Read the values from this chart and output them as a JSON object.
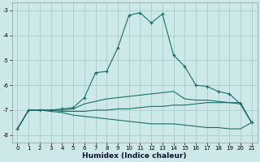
{
  "xlabel": "Humidex (Indice chaleur)",
  "bg_color": "#cce8e8",
  "grid_color": "#aacccc",
  "line_color": "#1a6e6a",
  "xlim": [
    -0.5,
    21.5
  ],
  "ylim": [
    -8.3,
    -2.7
  ],
  "xticks": [
    0,
    1,
    2,
    3,
    4,
    5,
    6,
    7,
    8,
    9,
    10,
    11,
    12,
    13,
    14,
    15,
    16,
    17,
    18,
    19,
    20,
    21
  ],
  "yticks": [
    -8,
    -7,
    -6,
    -5,
    -4,
    -3
  ],
  "main_x": [
    0,
    1,
    2,
    3,
    4,
    5,
    6,
    7,
    8,
    9,
    10,
    11,
    12,
    13,
    14,
    15,
    16,
    17,
    18,
    19,
    20,
    21
  ],
  "main_y": [
    -7.75,
    -7.0,
    -7.0,
    -7.0,
    -6.95,
    -6.9,
    -6.5,
    -5.5,
    -5.45,
    -4.5,
    -3.2,
    -3.1,
    -3.5,
    -3.15,
    -4.8,
    -5.25,
    -6.0,
    -6.05,
    -6.25,
    -6.35,
    -6.75,
    -7.5
  ],
  "line2_x": [
    0,
    1,
    2,
    3,
    4,
    5,
    6,
    7,
    8,
    9,
    10,
    11,
    12,
    13,
    14,
    15,
    16,
    17,
    18,
    19,
    20,
    21
  ],
  "line2_y": [
    -7.75,
    -7.0,
    -7.0,
    -7.0,
    -7.0,
    -6.95,
    -6.75,
    -6.65,
    -6.55,
    -6.5,
    -6.45,
    -6.4,
    -6.35,
    -6.3,
    -6.25,
    -6.55,
    -6.6,
    -6.6,
    -6.65,
    -6.7,
    -6.75,
    -7.5
  ],
  "line3_x": [
    0,
    1,
    2,
    3,
    4,
    5,
    6,
    7,
    8,
    9,
    10,
    11,
    12,
    13,
    14,
    15,
    16,
    17,
    18,
    19,
    20,
    21
  ],
  "line3_y": [
    -7.75,
    -7.0,
    -7.0,
    -7.0,
    -7.05,
    -7.05,
    -7.05,
    -7.0,
    -7.0,
    -6.95,
    -6.95,
    -6.9,
    -6.85,
    -6.85,
    -6.8,
    -6.8,
    -6.75,
    -6.7,
    -6.7,
    -6.7,
    -6.7,
    -7.5
  ],
  "line4_x": [
    0,
    1,
    2,
    3,
    4,
    5,
    6,
    7,
    8,
    9,
    10,
    11,
    12,
    13,
    14,
    15,
    16,
    17,
    18,
    19,
    20,
    21
  ],
  "line4_y": [
    -7.75,
    -7.0,
    -7.0,
    -7.05,
    -7.1,
    -7.2,
    -7.25,
    -7.3,
    -7.35,
    -7.4,
    -7.45,
    -7.5,
    -7.55,
    -7.55,
    -7.55,
    -7.6,
    -7.65,
    -7.7,
    -7.7,
    -7.75,
    -7.75,
    -7.5
  ]
}
